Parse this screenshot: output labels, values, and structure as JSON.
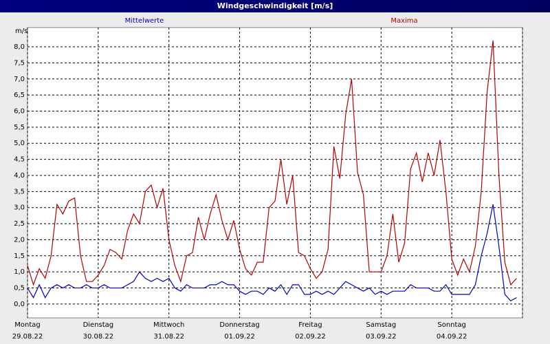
{
  "chart_data": {
    "type": "line",
    "title": "Windgeschwindigkeit [m/s]",
    "ylabel": "m/s",
    "x": [
      0,
      2,
      4,
      6,
      8,
      10,
      12,
      14,
      16,
      18,
      20,
      22,
      24,
      26,
      28,
      30,
      32,
      34,
      36,
      38,
      40,
      42,
      44,
      46,
      48,
      50,
      52,
      54,
      56,
      58,
      60,
      62,
      64,
      66,
      68,
      70,
      72,
      74,
      76,
      78,
      80,
      82,
      84,
      86,
      88,
      90,
      92,
      94,
      96,
      98,
      100,
      102,
      104,
      106,
      108,
      110,
      112,
      114,
      116,
      118,
      120,
      122,
      124,
      126,
      128,
      130,
      132,
      134,
      136,
      138,
      140,
      142,
      144,
      146,
      148,
      150,
      152,
      154,
      156,
      158,
      160,
      162,
      164,
      166
    ],
    "xlim": [
      0,
      168
    ],
    "xticks": [
      {
        "value": 0,
        "label": [
          "Montag",
          "29.08.22"
        ]
      },
      {
        "value": 24,
        "label": [
          "Dienstag",
          "30.08.22"
        ]
      },
      {
        "value": 48,
        "label": [
          "Mittwoch",
          "31.08.22"
        ]
      },
      {
        "value": 72,
        "label": [
          "Donnerstag",
          "01.09.22"
        ]
      },
      {
        "value": 96,
        "label": [
          "Freitag",
          "02.09.22"
        ]
      },
      {
        "value": 120,
        "label": [
          "Samstag",
          "03.09.22"
        ]
      },
      {
        "value": 144,
        "label": [
          "Sonntag",
          "04.09.22"
        ]
      },
      {
        "value": 168,
        "label": [
          "",
          ""
        ]
      }
    ],
    "ylim": [
      -0.43,
      8.6
    ],
    "yticks": [
      {
        "value": 0,
        "label": "0,0"
      },
      {
        "value": 0.5,
        "label": "0,5"
      },
      {
        "value": 1,
        "label": "1,0"
      },
      {
        "value": 1.5,
        "label": "1,5"
      },
      {
        "value": 2,
        "label": "2,0"
      },
      {
        "value": 2.5,
        "label": "2,5"
      },
      {
        "value": 3,
        "label": "3,0"
      },
      {
        "value": 3.5,
        "label": "3,5"
      },
      {
        "value": 4,
        "label": "4,0"
      },
      {
        "value": 4.5,
        "label": "4,5"
      },
      {
        "value": 5,
        "label": "5,0"
      },
      {
        "value": 5.5,
        "label": "5,5"
      },
      {
        "value": 6,
        "label": "6,0"
      },
      {
        "value": 6.5,
        "label": "6,5"
      },
      {
        "value": 7,
        "label": "7,0"
      },
      {
        "value": 7.5,
        "label": "7,5"
      },
      {
        "value": 8,
        "label": "8,0"
      }
    ],
    "grid": true,
    "series": [
      {
        "name": "Mittelwerte",
        "color": "#0000c8",
        "values": [
          0.5,
          0.2,
          0.6,
          0.2,
          0.5,
          0.6,
          0.5,
          0.6,
          0.5,
          0.5,
          0.6,
          0.5,
          0.5,
          0.6,
          0.5,
          0.5,
          0.5,
          0.6,
          0.7,
          1.0,
          0.8,
          0.7,
          0.8,
          0.7,
          0.8,
          0.5,
          0.4,
          0.6,
          0.5,
          0.5,
          0.5,
          0.6,
          0.6,
          0.7,
          0.6,
          0.6,
          0.4,
          0.3,
          0.4,
          0.4,
          0.3,
          0.5,
          0.4,
          0.6,
          0.3,
          0.6,
          0.6,
          0.3,
          0.3,
          0.4,
          0.3,
          0.4,
          0.3,
          0.5,
          0.7,
          0.6,
          0.5,
          0.4,
          0.5,
          0.3,
          0.4,
          0.3,
          0.4,
          0.4,
          0.4,
          0.6,
          0.5,
          0.5,
          0.5,
          0.4,
          0.4,
          0.6,
          0.3,
          0.3,
          0.3,
          0.3,
          0.6,
          1.5,
          2.2,
          3.1,
          1.8,
          0.3,
          0.1,
          0.2
        ]
      },
      {
        "name": "Maxima",
        "color": "#b40000",
        "values": [
          1.2,
          0.6,
          1.1,
          0.8,
          1.5,
          3.1,
          2.8,
          3.2,
          3.3,
          1.5,
          0.7,
          0.7,
          0.9,
          1.2,
          1.7,
          1.6,
          1.4,
          2.3,
          2.8,
          2.5,
          3.5,
          3.7,
          3.0,
          3.6,
          2.0,
          1.2,
          0.7,
          1.5,
          1.6,
          2.7,
          2.0,
          2.8,
          3.4,
          2.6,
          2.0,
          2.6,
          1.7,
          1.1,
          0.9,
          1.3,
          1.3,
          3.0,
          3.2,
          4.5,
          3.1,
          4.0,
          1.6,
          1.5,
          1.1,
          0.8,
          1.0,
          1.7,
          4.9,
          3.9,
          5.9,
          7.0,
          4.1,
          3.4,
          1.0,
          1.0,
          1.0,
          1.5,
          2.8,
          1.3,
          1.9,
          4.2,
          4.7,
          3.8,
          4.7,
          4.0,
          5.1,
          3.5,
          1.4,
          0.9,
          1.4,
          1.0,
          1.8,
          3.5,
          6.6,
          8.2,
          4.0,
          1.3,
          0.6,
          0.8
        ]
      }
    ]
  }
}
